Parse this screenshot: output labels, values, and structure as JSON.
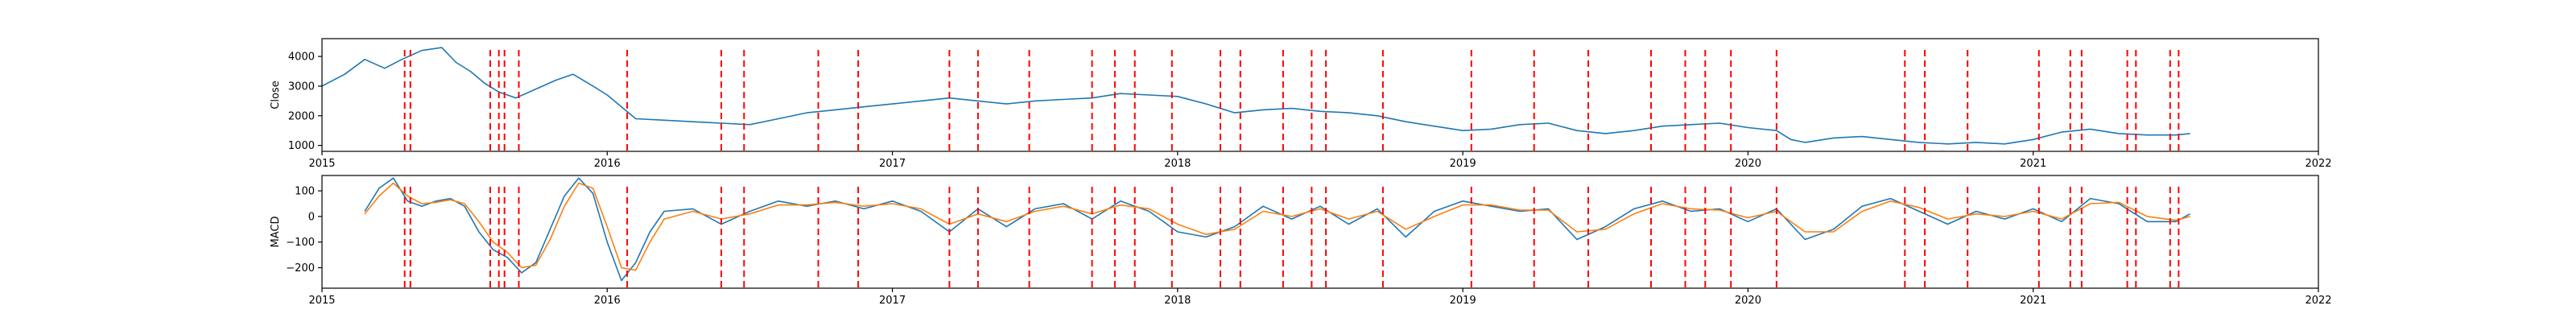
{
  "chart_data": [
    {
      "type": "line",
      "ylabel": "Close",
      "ylim": [
        800,
        4600
      ],
      "yticks": [
        "1000",
        "2000",
        "3000",
        "4000"
      ],
      "ytick_values": [
        1000,
        2000,
        3000,
        4000
      ],
      "xlim": [
        2015.0,
        2022.0
      ],
      "xticks": [
        "2015",
        "2016",
        "2017",
        "2018",
        "2019",
        "2020",
        "2021",
        "2022"
      ],
      "xtick_values": [
        2015,
        2016,
        2017,
        2018,
        2019,
        2020,
        2021,
        2022
      ],
      "grid": false,
      "line_color": "#1f77b4",
      "series": [
        {
          "x": [
            2015.0,
            2015.08,
            2015.15,
            2015.22,
            2015.28,
            2015.35,
            2015.42,
            2015.47,
            2015.52,
            2015.57,
            2015.62,
            2015.68,
            2015.75,
            2015.82,
            2015.88,
            2015.95,
            2016.0,
            2016.05,
            2016.1,
            2016.2,
            2016.3,
            2016.4,
            2016.5,
            2016.6,
            2016.7,
            2016.8,
            2016.9,
            2017.0,
            2017.1,
            2017.2,
            2017.3,
            2017.4,
            2017.5,
            2017.6,
            2017.7,
            2017.8,
            2017.9,
            2018.0,
            2018.1,
            2018.2,
            2018.3,
            2018.4,
            2018.5,
            2018.6,
            2018.7,
            2018.8,
            2018.9,
            2019.0,
            2019.1,
            2019.2,
            2019.3,
            2019.4,
            2019.5,
            2019.6,
            2019.7,
            2019.8,
            2019.9,
            2020.0,
            2020.1,
            2020.15,
            2020.2,
            2020.3,
            2020.4,
            2020.5,
            2020.6,
            2020.7,
            2020.8,
            2020.9,
            2021.0,
            2021.1,
            2021.2,
            2021.3,
            2021.4,
            2021.5,
            2021.55
          ],
          "y": [
            3000,
            3400,
            3900,
            3600,
            3900,
            4200,
            4300,
            3800,
            3500,
            3100,
            2800,
            2600,
            2900,
            3200,
            3400,
            3000,
            2700,
            2300,
            1900,
            1850,
            1800,
            1750,
            1700,
            1900,
            2100,
            2200,
            2300,
            2400,
            2500,
            2600,
            2500,
            2400,
            2500,
            2550,
            2600,
            2750,
            2700,
            2650,
            2400,
            2100,
            2200,
            2250,
            2150,
            2100,
            2000,
            1800,
            1650,
            1500,
            1550,
            1700,
            1750,
            1500,
            1400,
            1500,
            1650,
            1700,
            1750,
            1600,
            1500,
            1200,
            1100,
            1250,
            1300,
            1200,
            1100,
            1050,
            1100,
            1050,
            1200,
            1450,
            1550,
            1400,
            1350,
            1350,
            1400
          ]
        }
      ],
      "vlines_color": "#ff0000",
      "vlines": [
        2015.29,
        2015.31,
        2015.59,
        2015.62,
        2015.64,
        2015.69,
        2016.07,
        2016.4,
        2016.48,
        2016.74,
        2016.88,
        2017.2,
        2017.3,
        2017.48,
        2017.7,
        2017.78,
        2017.85,
        2017.98,
        2018.15,
        2018.22,
        2018.37,
        2018.47,
        2018.52,
        2018.72,
        2019.03,
        2019.25,
        2019.44,
        2019.66,
        2019.78,
        2019.85,
        2019.94,
        2020.1,
        2020.55,
        2020.62,
        2020.77,
        2021.02,
        2021.13,
        2021.17,
        2021.33,
        2021.36,
        2021.48,
        2021.51
      ]
    },
    {
      "type": "line",
      "ylabel": "MACD",
      "ylim": [
        -280,
        160
      ],
      "yticks": [
        "−200",
        "−100",
        "0",
        "100"
      ],
      "ytick_values": [
        -200,
        -100,
        0,
        100
      ],
      "xlim": [
        2015.0,
        2022.0
      ],
      "xticks": [
        "2015",
        "2016",
        "2017",
        "2018",
        "2019",
        "2020",
        "2021",
        "2022"
      ],
      "xtick_values": [
        2015,
        2016,
        2017,
        2018,
        2019,
        2020,
        2021,
        2022
      ],
      "grid": false,
      "series": [
        {
          "color": "#1f77b4",
          "x": [
            2015.15,
            2015.2,
            2015.25,
            2015.3,
            2015.35,
            2015.4,
            2015.45,
            2015.5,
            2015.55,
            2015.6,
            2015.65,
            2015.7,
            2015.75,
            2015.8,
            2015.85,
            2015.9,
            2015.95,
            2016.0,
            2016.05,
            2016.1,
            2016.15,
            2016.2,
            2016.3,
            2016.4,
            2016.5,
            2016.6,
            2016.7,
            2016.8,
            2016.9,
            2017.0,
            2017.1,
            2017.2,
            2017.3,
            2017.4,
            2017.5,
            2017.6,
            2017.7,
            2017.8,
            2017.9,
            2018.0,
            2018.1,
            2018.2,
            2018.3,
            2018.4,
            2018.5,
            2018.6,
            2018.7,
            2018.8,
            2018.9,
            2019.0,
            2019.1,
            2019.2,
            2019.3,
            2019.4,
            2019.5,
            2019.6,
            2019.7,
            2019.8,
            2019.9,
            2020.0,
            2020.1,
            2020.2,
            2020.3,
            2020.4,
            2020.5,
            2020.6,
            2020.7,
            2020.8,
            2020.9,
            2021.0,
            2021.1,
            2021.2,
            2021.3,
            2021.4,
            2021.5,
            2021.55
          ],
          "y": [
            20,
            110,
            150,
            60,
            40,
            60,
            70,
            40,
            -60,
            -130,
            -160,
            -220,
            -180,
            -50,
            80,
            150,
            90,
            -100,
            -250,
            -180,
            -60,
            20,
            30,
            -30,
            20,
            60,
            40,
            60,
            30,
            60,
            20,
            -60,
            30,
            -40,
            30,
            50,
            -10,
            60,
            20,
            -60,
            -80,
            -40,
            40,
            -10,
            40,
            -30,
            30,
            -80,
            20,
            60,
            40,
            20,
            30,
            -90,
            -40,
            30,
            60,
            20,
            30,
            -20,
            30,
            -90,
            -50,
            40,
            70,
            20,
            -30,
            20,
            -10,
            30,
            -20,
            70,
            50,
            -20,
            -20,
            10
          ]
        },
        {
          "color": "#ff7f0e",
          "x": [
            2015.15,
            2015.2,
            2015.25,
            2015.3,
            2015.35,
            2015.4,
            2015.45,
            2015.5,
            2015.55,
            2015.6,
            2015.65,
            2015.7,
            2015.75,
            2015.8,
            2015.85,
            2015.9,
            2015.95,
            2016.0,
            2016.05,
            2016.1,
            2016.15,
            2016.2,
            2016.3,
            2016.4,
            2016.5,
            2016.6,
            2016.7,
            2016.8,
            2016.9,
            2017.0,
            2017.1,
            2017.2,
            2017.3,
            2017.4,
            2017.5,
            2017.6,
            2017.7,
            2017.8,
            2017.9,
            2018.0,
            2018.1,
            2018.2,
            2018.3,
            2018.4,
            2018.5,
            2018.6,
            2018.7,
            2018.8,
            2018.9,
            2019.0,
            2019.1,
            2019.2,
            2019.3,
            2019.4,
            2019.5,
            2019.6,
            2019.7,
            2019.8,
            2019.9,
            2020.0,
            2020.1,
            2020.2,
            2020.3,
            2020.4,
            2020.5,
            2020.6,
            2020.7,
            2020.8,
            2020.9,
            2021.0,
            2021.1,
            2021.2,
            2021.3,
            2021.4,
            2021.5,
            2021.55
          ],
          "y": [
            10,
            80,
            130,
            80,
            50,
            55,
            65,
            50,
            -20,
            -100,
            -140,
            -200,
            -190,
            -90,
            40,
            130,
            110,
            -40,
            -200,
            -210,
            -100,
            -10,
            20,
            -10,
            10,
            45,
            45,
            55,
            40,
            50,
            30,
            -30,
            10,
            -20,
            20,
            40,
            10,
            45,
            30,
            -30,
            -70,
            -50,
            20,
            0,
            30,
            -10,
            20,
            -50,
            0,
            45,
            45,
            25,
            25,
            -60,
            -50,
            10,
            50,
            30,
            25,
            -5,
            20,
            -60,
            -60,
            20,
            60,
            35,
            -10,
            10,
            0,
            20,
            -10,
            50,
            55,
            0,
            -15,
            0
          ]
        }
      ],
      "vlines_color": "#ff0000",
      "vlines": [
        2015.29,
        2015.31,
        2015.59,
        2015.62,
        2015.64,
        2015.69,
        2016.07,
        2016.4,
        2016.48,
        2016.74,
        2016.88,
        2017.2,
        2017.3,
        2017.48,
        2017.7,
        2017.78,
        2017.85,
        2017.98,
        2018.15,
        2018.22,
        2018.37,
        2018.47,
        2018.52,
        2018.72,
        2019.03,
        2019.25,
        2019.44,
        2019.66,
        2019.78,
        2019.85,
        2019.94,
        2020.1,
        2020.55,
        2020.62,
        2020.77,
        2021.02,
        2021.13,
        2021.17,
        2021.33,
        2021.36,
        2021.48,
        2021.51
      ]
    }
  ]
}
